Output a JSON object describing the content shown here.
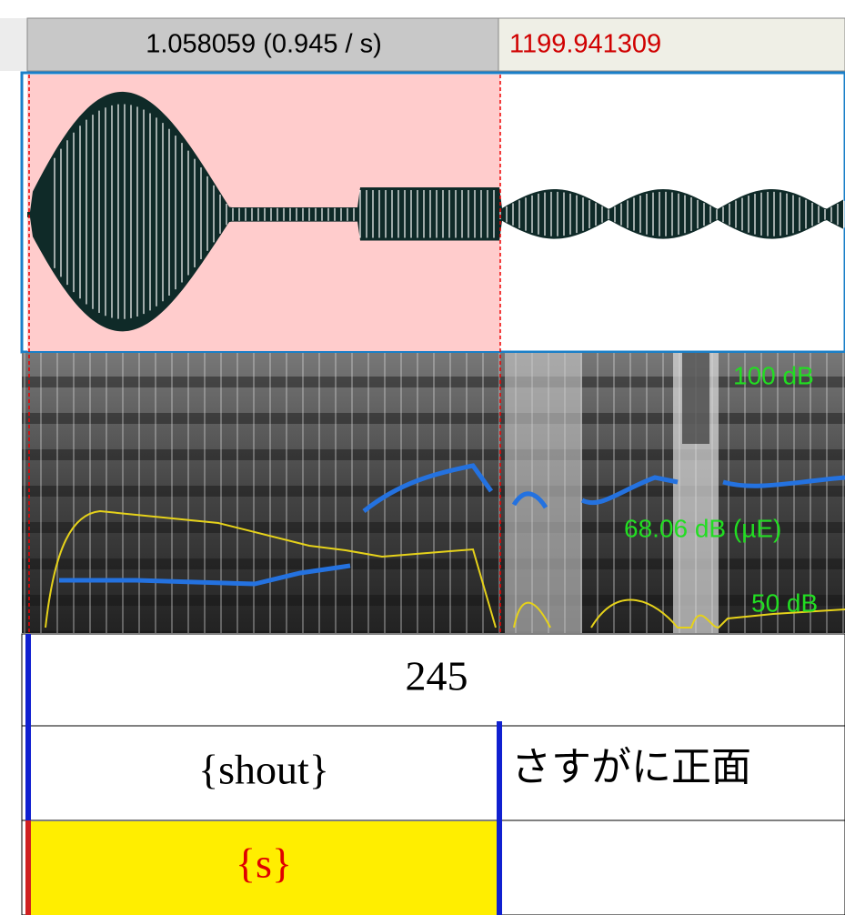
{
  "top_bar": {
    "selection_duration": "1.058059 (0.945 / s)",
    "right_time": "1199.941309"
  },
  "spectrogram": {
    "top_label": "100 dB",
    "mid_label": "68.06 dB (µE)",
    "bottom_label": "50 dB"
  },
  "tiers": [
    {
      "intervals": [
        "245"
      ]
    },
    {
      "intervals": [
        "{shout}",
        "さすがに正面"
      ]
    },
    {
      "intervals": [
        "{s}"
      ]
    }
  ]
}
